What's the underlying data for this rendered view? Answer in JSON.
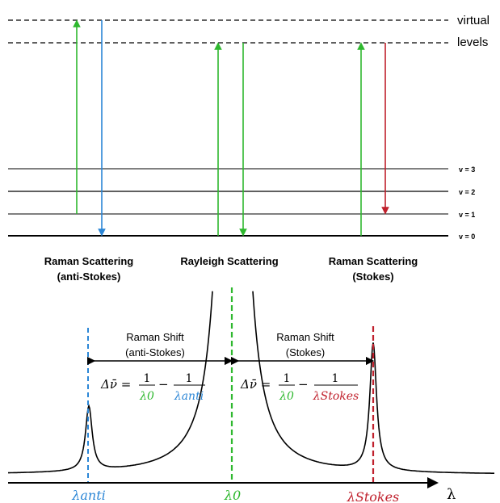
{
  "levels": {
    "virtual_label_1": "virtual",
    "virtual_label_2": "levels",
    "vibrational": [
      "v = 3",
      "v = 2",
      "v = 1",
      "v = 0"
    ]
  },
  "labels": {
    "raman_anti": [
      "Raman Scattering",
      "(anti-Stokes)"
    ],
    "rayleigh": "Rayleigh Scattering",
    "raman_stokes": [
      "Raman Scattering",
      "(Stokes)"
    ]
  },
  "shift_labels": {
    "anti": [
      "Raman Shift",
      "(anti-Stokes)"
    ],
    "stokes": [
      "Raman Shift",
      "(Stokes)"
    ]
  },
  "formula": {
    "delta_nu": "Δν̄ = ",
    "minus": " − ",
    "one": "1",
    "lambda0": "λ0",
    "lambda_anti": "λanti",
    "lambda_stokes": "λStokes"
  },
  "axis": {
    "x_symbol": "λ",
    "ticks": [
      "λanti",
      "λ0",
      "λStokes"
    ]
  },
  "colors": {
    "green": "#2eb82e",
    "blue": "#2b86d6",
    "red": "#c0202c",
    "black": "#000000"
  }
}
